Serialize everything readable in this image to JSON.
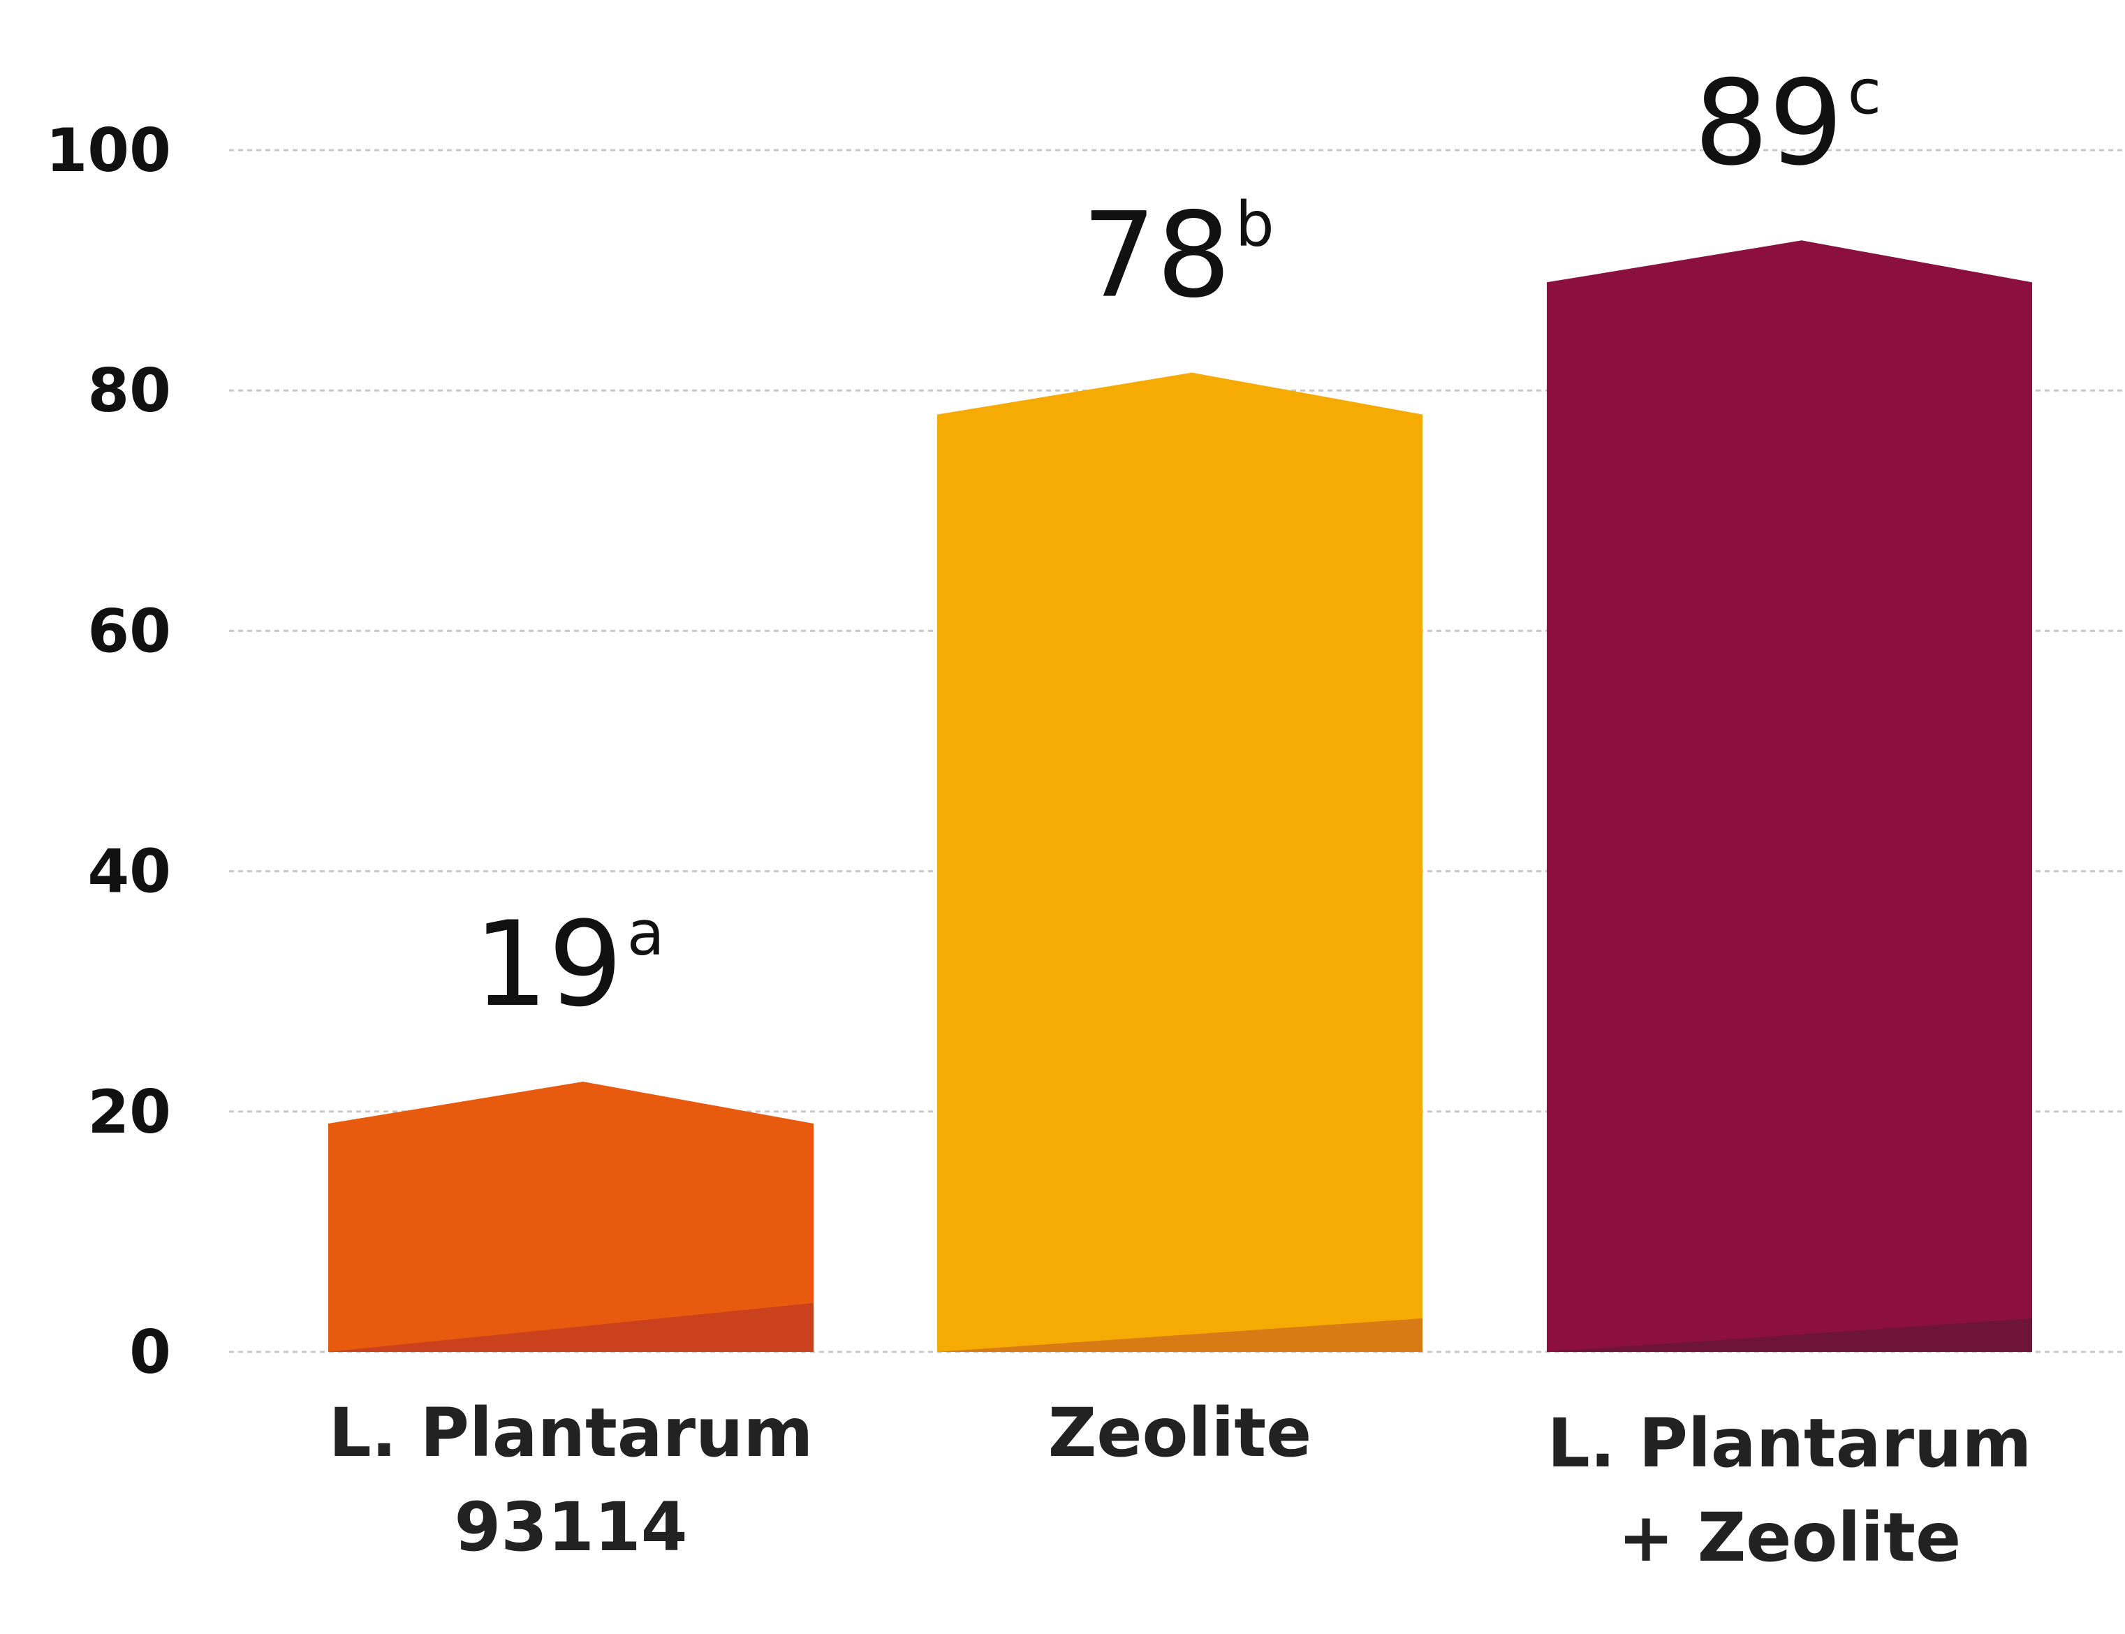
{
  "chart_data": {
    "type": "bar",
    "categories": [
      [
        "L. Plantarum",
        "93114"
      ],
      [
        "Zeolite"
      ],
      [
        "L. Plantarum",
        "+ Zeolite"
      ]
    ],
    "values": [
      19,
      78,
      89
    ],
    "value_labels": [
      "19",
      "78",
      "89"
    ],
    "significance_letters": [
      "a",
      "b",
      "c"
    ],
    "colors": [
      "#E85B0E",
      "#F5AB03",
      "#8B1040"
    ],
    "shade_colors": [
      "#C9411D",
      "#D97B14",
      "#6E1436"
    ],
    "yticks": [
      "0",
      "20",
      "40",
      "60",
      "80",
      "100"
    ],
    "ylim": [
      0,
      100
    ],
    "grid": true,
    "title": "",
    "xlabel": "",
    "ylabel": ""
  }
}
